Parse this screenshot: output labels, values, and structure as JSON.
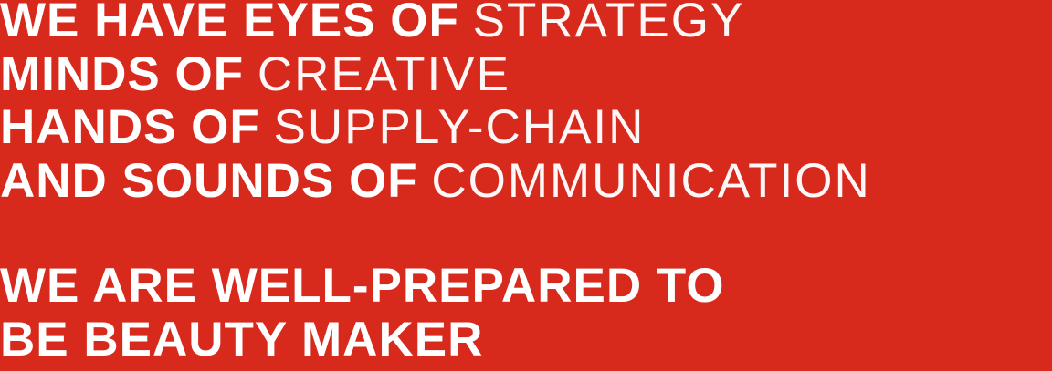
{
  "statement": {
    "lines": [
      {
        "bold": "WE HAVE EYES OF",
        "light": "STRATEGY"
      },
      {
        "bold": "MINDS OF",
        "light": "CREATIVE"
      },
      {
        "bold": "HANDS OF",
        "light": "SUPPLY-CHAIN"
      },
      {
        "bold": "AND SOUNDS OF",
        "light": "COMMUNICATION"
      }
    ],
    "closing": [
      "WE ARE WELL-PREPARED TO",
      "BE BEAUTY MAKER"
    ]
  }
}
